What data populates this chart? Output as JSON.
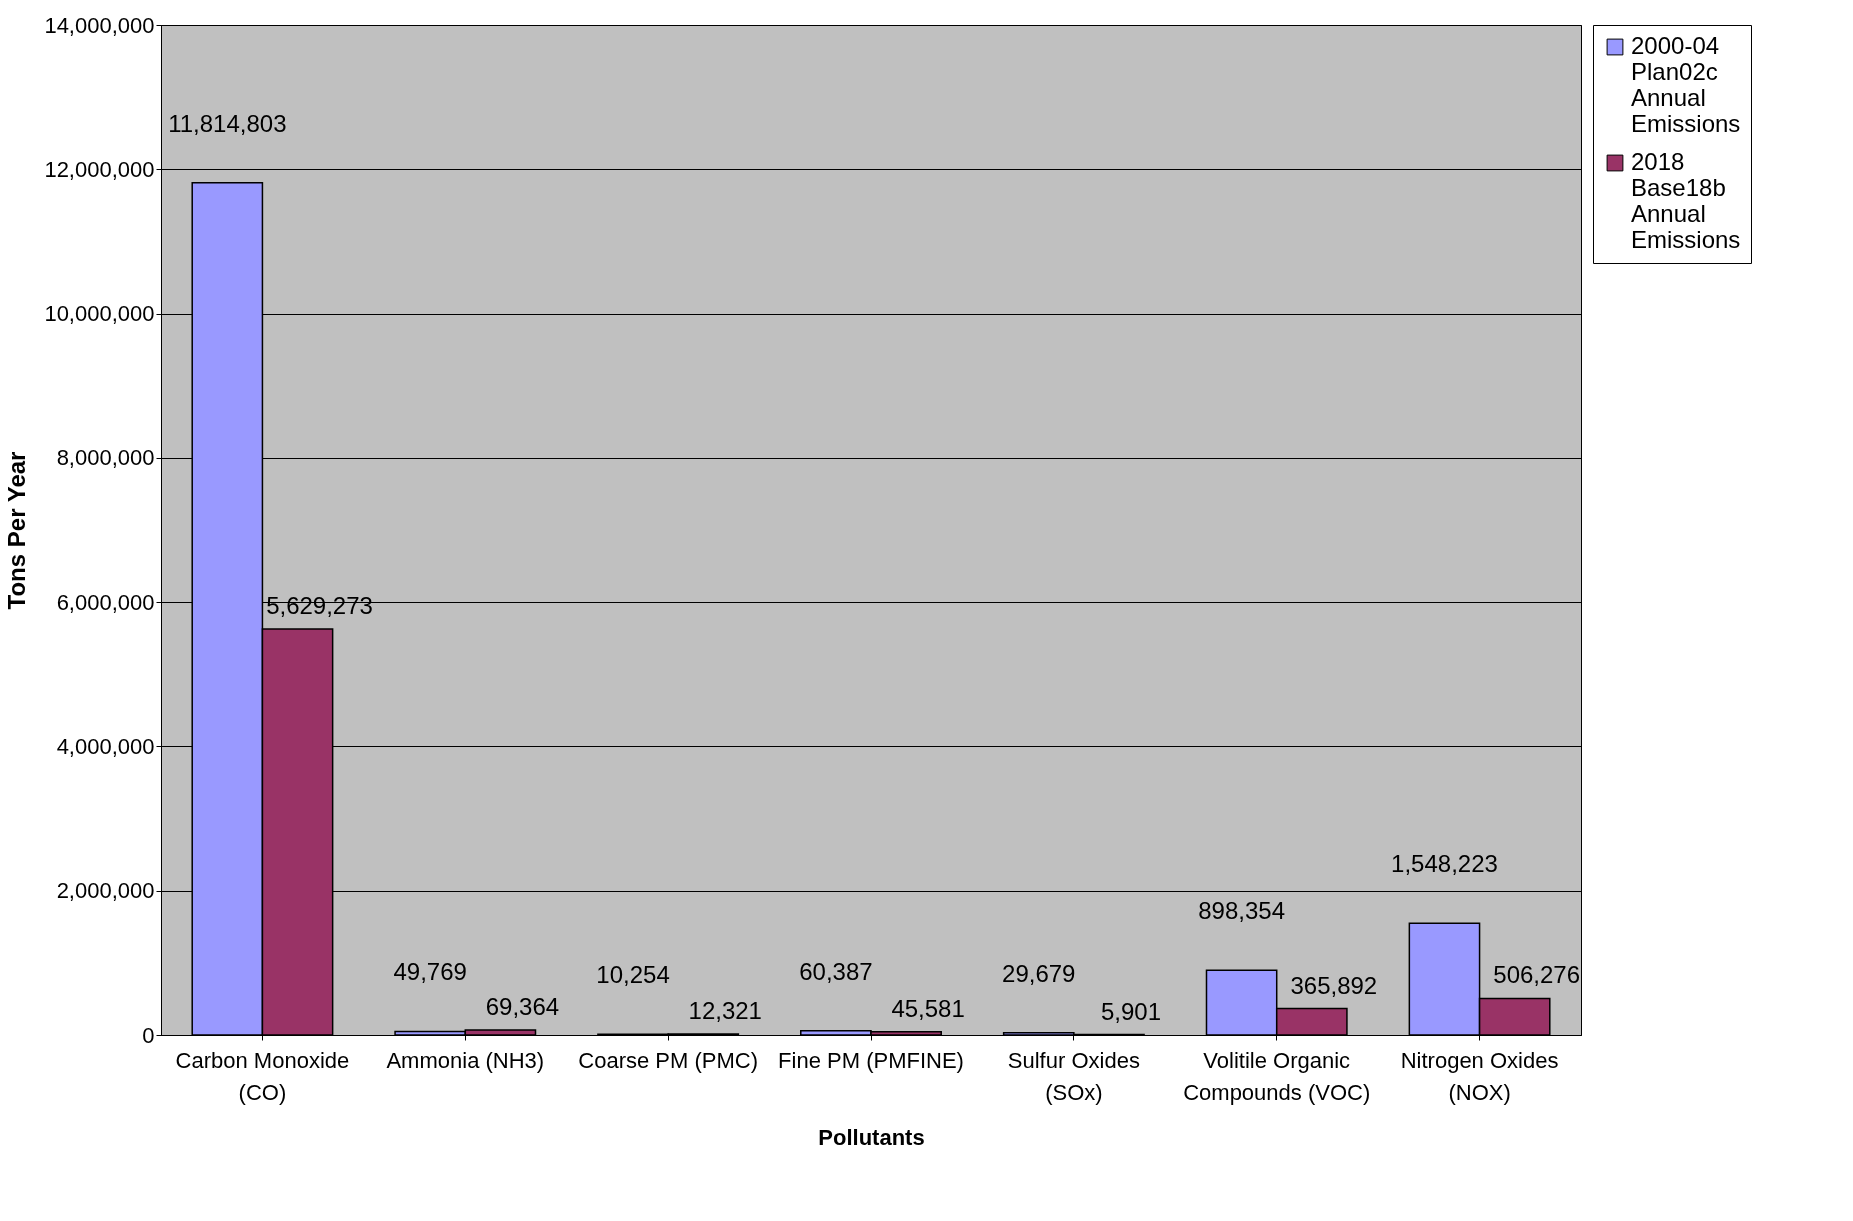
{
  "chart_data": {
    "type": "bar",
    "xlabel": "Pollutants",
    "ylabel": "Tons Per Year",
    "categories": [
      "Carbon Monoxide (CO)",
      "Ammonia (NH3)",
      "Coarse PM (PMC)",
      "Fine PM (PMFINE)",
      "Sulfur Oxides (SOx)",
      "Volitile Organic Compounds (VOC)",
      "Nitrogen Oxides (NOX)"
    ],
    "series": [
      {
        "name": "2000-04 Plan02c Annual Emissions",
        "color": "#9999ff",
        "values": [
          11814803,
          49769,
          10254,
          60387,
          29679,
          898354,
          1548223
        ],
        "value_labels": [
          "11,814,803",
          "49,769",
          "10,254",
          "60,387",
          "29,679",
          "898,354",
          "1,548,223"
        ]
      },
      {
        "name": "2018 Base18b Annual Emissions",
        "color": "#993366",
        "values": [
          5629273,
          69364,
          12321,
          45581,
          5901,
          365892,
          506276
        ],
        "value_labels": [
          "5,629,273",
          "69,364",
          "12,321",
          "45,581",
          "5,901",
          "365,892",
          "506,276"
        ]
      }
    ],
    "ylim": [
      0,
      14000000
    ],
    "yticks": [
      {
        "value": 0,
        "label": "0"
      },
      {
        "value": 2000000,
        "label": "2,000,000"
      },
      {
        "value": 4000000,
        "label": "4,000,000"
      },
      {
        "value": 6000000,
        "label": "6,000,000"
      },
      {
        "value": 8000000,
        "label": "8,000,000"
      },
      {
        "value": 10000000,
        "label": "10,000,000"
      },
      {
        "value": 12000000,
        "label": "12,000,000"
      },
      {
        "value": 14000000,
        "label": "14,000,000"
      }
    ],
    "grid": "y",
    "legend": "right"
  }
}
